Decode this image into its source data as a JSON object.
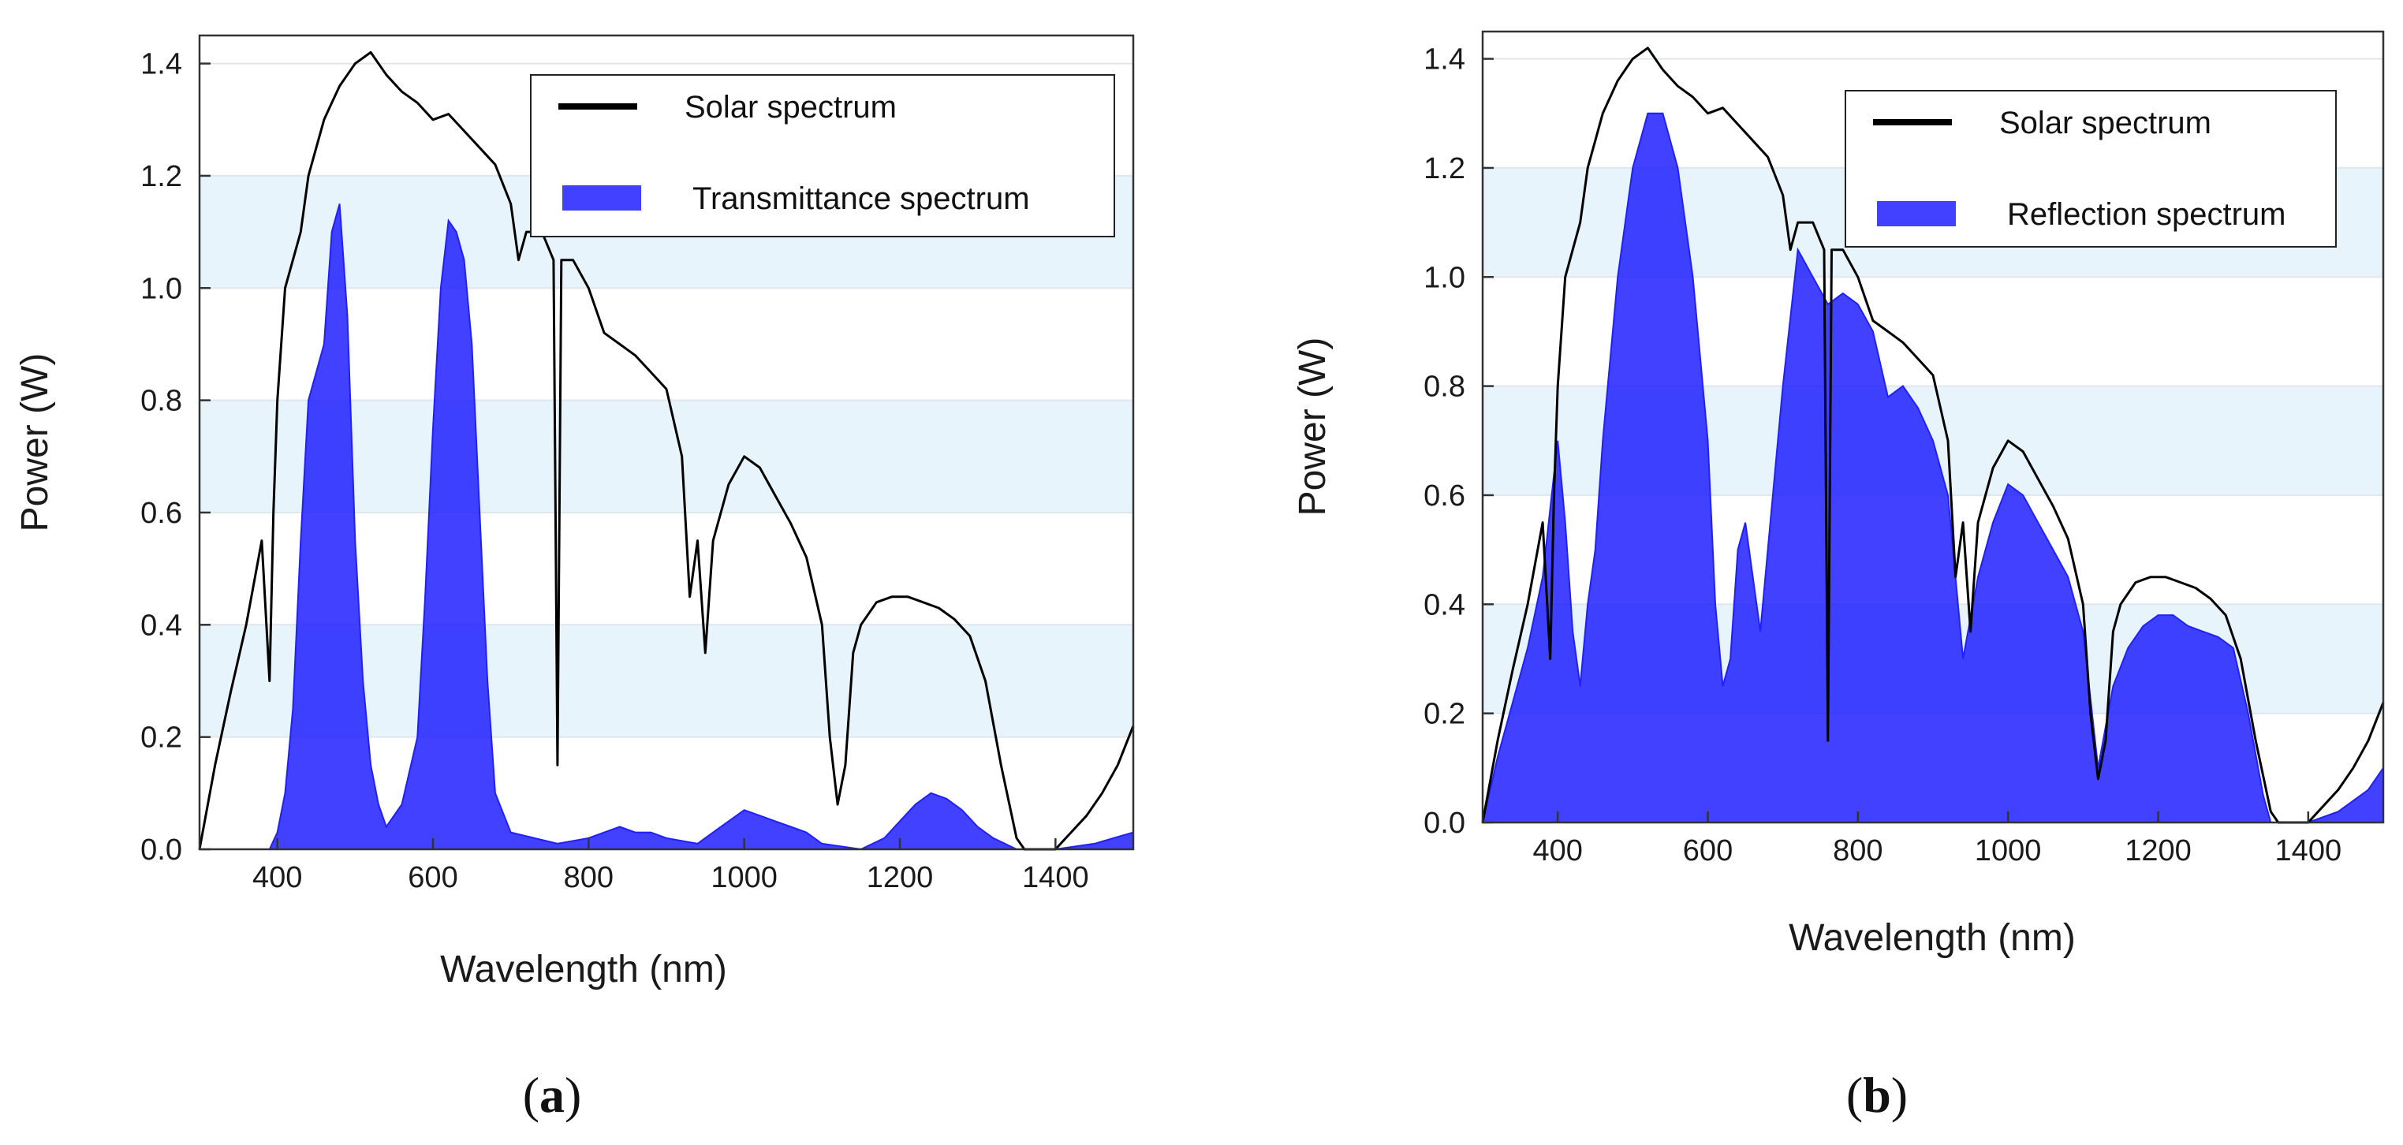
{
  "chart_data": [
    {
      "type": "area",
      "panel_label": {
        "open": "(",
        "letter": "a",
        "close": ")"
      },
      "xlabel": "Wavelength (nm)",
      "ylabel": "Power (W)",
      "xlim": [
        300,
        1500
      ],
      "ylim": [
        0,
        1.45
      ],
      "xticks": [
        400,
        600,
        800,
        1000,
        1200,
        1400
      ],
      "yticks": [
        0.0,
        0.2,
        0.4,
        0.6,
        0.8,
        1.0,
        1.2,
        1.4
      ],
      "xtick_labels": [
        "400",
        "600",
        "800",
        "1000",
        "1200",
        "1400"
      ],
      "ytick_labels": [
        "0.0",
        "0.2",
        "0.4",
        "0.6",
        "0.8",
        "1.0",
        "1.2",
        "1.4"
      ],
      "band_color": "#e8f4fc",
      "legend_position": "top-right",
      "series": [
        {
          "name": "Solar spectrum",
          "kind": "line",
          "color": "#000000",
          "x": [
            300,
            320,
            340,
            360,
            380,
            390,
            395,
            400,
            410,
            420,
            430,
            440,
            450,
            460,
            470,
            480,
            490,
            500,
            520,
            540,
            560,
            580,
            600,
            620,
            640,
            660,
            680,
            700,
            710,
            720,
            740,
            755,
            760,
            765,
            780,
            800,
            820,
            840,
            860,
            880,
            900,
            920,
            930,
            940,
            950,
            960,
            980,
            1000,
            1020,
            1040,
            1060,
            1080,
            1100,
            1110,
            1120,
            1130,
            1140,
            1150,
            1170,
            1190,
            1210,
            1230,
            1250,
            1270,
            1290,
            1310,
            1330,
            1350,
            1360,
            1380,
            1400,
            1420,
            1440,
            1460,
            1480,
            1500
          ],
          "y": [
            0.0,
            0.15,
            0.28,
            0.4,
            0.55,
            0.3,
            0.6,
            0.8,
            1.0,
            1.05,
            1.1,
            1.2,
            1.25,
            1.3,
            1.33,
            1.36,
            1.38,
            1.4,
            1.42,
            1.38,
            1.35,
            1.33,
            1.3,
            1.31,
            1.28,
            1.25,
            1.22,
            1.15,
            1.05,
            1.1,
            1.1,
            1.05,
            0.15,
            1.05,
            1.05,
            1.0,
            0.92,
            0.9,
            0.88,
            0.85,
            0.82,
            0.7,
            0.45,
            0.55,
            0.35,
            0.55,
            0.65,
            0.7,
            0.68,
            0.63,
            0.58,
            0.52,
            0.4,
            0.2,
            0.08,
            0.15,
            0.35,
            0.4,
            0.44,
            0.45,
            0.45,
            0.44,
            0.43,
            0.41,
            0.38,
            0.3,
            0.15,
            0.02,
            0.0,
            0.0,
            0.0,
            0.03,
            0.06,
            0.1,
            0.15,
            0.22
          ]
        },
        {
          "name": "Transmittance spectrum",
          "kind": "area",
          "color": "#2020ff",
          "x": [
            300,
            390,
            400,
            410,
            420,
            430,
            440,
            450,
            460,
            470,
            480,
            490,
            500,
            510,
            520,
            530,
            540,
            560,
            580,
            590,
            600,
            610,
            620,
            630,
            640,
            650,
            660,
            670,
            680,
            700,
            760,
            800,
            820,
            840,
            860,
            880,
            900,
            940,
            960,
            980,
            1000,
            1020,
            1040,
            1060,
            1080,
            1100,
            1150,
            1180,
            1200,
            1220,
            1240,
            1260,
            1280,
            1300,
            1320,
            1350,
            1400,
            1450,
            1500
          ],
          "y": [
            0.0,
            0.0,
            0.03,
            0.1,
            0.25,
            0.55,
            0.8,
            0.85,
            0.9,
            1.1,
            1.15,
            0.95,
            0.55,
            0.3,
            0.15,
            0.08,
            0.04,
            0.08,
            0.2,
            0.45,
            0.75,
            1.0,
            1.12,
            1.1,
            1.05,
            0.9,
            0.6,
            0.3,
            0.1,
            0.03,
            0.01,
            0.02,
            0.03,
            0.04,
            0.03,
            0.03,
            0.02,
            0.01,
            0.03,
            0.05,
            0.07,
            0.06,
            0.05,
            0.04,
            0.03,
            0.01,
            0.0,
            0.02,
            0.05,
            0.08,
            0.1,
            0.09,
            0.07,
            0.04,
            0.02,
            0.0,
            0.0,
            0.01,
            0.03
          ]
        }
      ]
    },
    {
      "type": "area",
      "panel_label": {
        "open": "(",
        "letter": "b",
        "close": ")"
      },
      "xlabel": "Wavelength (nm)",
      "ylabel": "Power (W)",
      "xlim": [
        300,
        1500
      ],
      "ylim": [
        0,
        1.45
      ],
      "xticks": [
        400,
        600,
        800,
        1000,
        1200,
        1400
      ],
      "yticks": [
        0.0,
        0.2,
        0.4,
        0.6,
        0.8,
        1.0,
        1.2,
        1.4
      ],
      "xtick_labels": [
        "400",
        "600",
        "800",
        "1000",
        "1200",
        "1400"
      ],
      "ytick_labels": [
        "0.0",
        "0.2",
        "0.4",
        "0.6",
        "0.8",
        "1.0",
        "1.2",
        "1.4"
      ],
      "band_color": "#e8f4fc",
      "legend_position": "top-right",
      "series": [
        {
          "name": "Solar spectrum",
          "kind": "line",
          "color": "#000000",
          "x": [
            300,
            320,
            340,
            360,
            380,
            390,
            395,
            400,
            410,
            420,
            430,
            440,
            450,
            460,
            470,
            480,
            490,
            500,
            520,
            540,
            560,
            580,
            600,
            620,
            640,
            660,
            680,
            700,
            710,
            720,
            740,
            755,
            760,
            765,
            780,
            800,
            820,
            840,
            860,
            880,
            900,
            920,
            930,
            940,
            950,
            960,
            980,
            1000,
            1020,
            1040,
            1060,
            1080,
            1100,
            1110,
            1120,
            1130,
            1140,
            1150,
            1170,
            1190,
            1210,
            1230,
            1250,
            1270,
            1290,
            1310,
            1330,
            1350,
            1360,
            1380,
            1400,
            1420,
            1440,
            1460,
            1480,
            1500
          ],
          "y": [
            0.0,
            0.15,
            0.28,
            0.4,
            0.55,
            0.3,
            0.6,
            0.8,
            1.0,
            1.05,
            1.1,
            1.2,
            1.25,
            1.3,
            1.33,
            1.36,
            1.38,
            1.4,
            1.42,
            1.38,
            1.35,
            1.33,
            1.3,
            1.31,
            1.28,
            1.25,
            1.22,
            1.15,
            1.05,
            1.1,
            1.1,
            1.05,
            0.15,
            1.05,
            1.05,
            1.0,
            0.92,
            0.9,
            0.88,
            0.85,
            0.82,
            0.7,
            0.45,
            0.55,
            0.35,
            0.55,
            0.65,
            0.7,
            0.68,
            0.63,
            0.58,
            0.52,
            0.4,
            0.2,
            0.08,
            0.15,
            0.35,
            0.4,
            0.44,
            0.45,
            0.45,
            0.44,
            0.43,
            0.41,
            0.38,
            0.3,
            0.15,
            0.02,
            0.0,
            0.0,
            0.0,
            0.03,
            0.06,
            0.1,
            0.15,
            0.22
          ]
        },
        {
          "name": "Reflection spectrum",
          "kind": "area",
          "color": "#2020ff",
          "x": [
            300,
            320,
            340,
            360,
            380,
            400,
            410,
            420,
            430,
            440,
            450,
            460,
            480,
            500,
            520,
            540,
            560,
            580,
            600,
            610,
            620,
            630,
            640,
            650,
            660,
            670,
            680,
            700,
            720,
            740,
            760,
            780,
            800,
            820,
            840,
            860,
            880,
            900,
            920,
            940,
            960,
            980,
            1000,
            1020,
            1040,
            1060,
            1080,
            1100,
            1120,
            1140,
            1160,
            1180,
            1200,
            1220,
            1240,
            1260,
            1280,
            1300,
            1320,
            1340,
            1350,
            1360,
            1400,
            1440,
            1480,
            1500
          ],
          "y": [
            0.0,
            0.12,
            0.22,
            0.32,
            0.45,
            0.7,
            0.55,
            0.35,
            0.25,
            0.4,
            0.5,
            0.7,
            1.0,
            1.2,
            1.3,
            1.3,
            1.2,
            1.0,
            0.7,
            0.4,
            0.25,
            0.3,
            0.5,
            0.55,
            0.45,
            0.35,
            0.5,
            0.8,
            1.05,
            1.0,
            0.95,
            0.97,
            0.95,
            0.9,
            0.78,
            0.8,
            0.76,
            0.7,
            0.6,
            0.3,
            0.45,
            0.55,
            0.62,
            0.6,
            0.55,
            0.5,
            0.45,
            0.35,
            0.1,
            0.25,
            0.32,
            0.36,
            0.38,
            0.38,
            0.36,
            0.35,
            0.34,
            0.32,
            0.2,
            0.05,
            0.0,
            0.0,
            0.0,
            0.02,
            0.06,
            0.1
          ]
        }
      ]
    }
  ]
}
